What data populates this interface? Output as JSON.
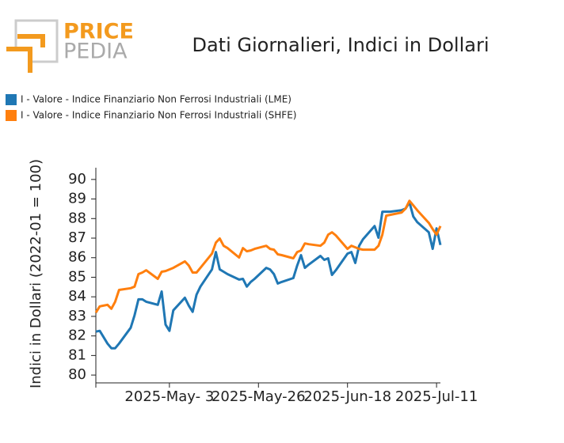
{
  "logo": {
    "line1": "PRICE",
    "line2": "PEDIA"
  },
  "chart_data": {
    "type": "line",
    "title": "Dati Giornalieri, Indici in Dollari",
    "y_label": "Indici in Dollari (2022-01 = 100)",
    "x": [
      "2025-04-14",
      "2025-04-15",
      "2025-04-17",
      "2025-04-18",
      "2025-04-19",
      "2025-04-20",
      "2025-04-23",
      "2025-04-24",
      "2025-04-25",
      "2025-04-26",
      "2025-04-27",
      "2025-04-30",
      "2025-05-01",
      "2025-05-02",
      "2025-05-03",
      "2025-05-04",
      "2025-05-07",
      "2025-05-08",
      "2025-05-09",
      "2025-05-10",
      "2025-05-11",
      "2025-05-14",
      "2025-05-15",
      "2025-05-16",
      "2025-05-17",
      "2025-05-18",
      "2025-05-21",
      "2025-05-22",
      "2025-05-23",
      "2025-05-24",
      "2025-05-25",
      "2025-05-28",
      "2025-05-29",
      "2025-05-30",
      "2025-05-31",
      "2025-06-01",
      "2025-06-04",
      "2025-06-05",
      "2025-06-06",
      "2025-06-07",
      "2025-06-08",
      "2025-06-11",
      "2025-06-12",
      "2025-06-13",
      "2025-06-14",
      "2025-06-15",
      "2025-06-18",
      "2025-06-19",
      "2025-06-20",
      "2025-06-21",
      "2025-06-22",
      "2025-06-25",
      "2025-06-26",
      "2025-06-27",
      "2025-06-28",
      "2025-06-29",
      "2025-07-02",
      "2025-07-03",
      "2025-07-04",
      "2025-07-05",
      "2025-07-06",
      "2025-07-09",
      "2025-07-10",
      "2025-07-11",
      "2025-07-12"
    ],
    "series": [
      {
        "name": "I - Valore - Indice Finanziario Non Ferrosi Industriali (LME)",
        "color": "#1f77b4",
        "values": [
          82.22,
          82.26,
          81.61,
          81.37,
          81.37,
          81.61,
          82.42,
          83.06,
          83.87,
          83.87,
          83.75,
          83.59,
          84.27,
          82.58,
          82.26,
          83.31,
          83.95,
          83.55,
          83.23,
          84.11,
          84.52,
          85.4,
          86.29,
          85.4,
          85.28,
          85.16,
          84.88,
          84.92,
          84.52,
          84.76,
          84.92,
          85.48,
          85.4,
          85.16,
          84.68,
          84.76,
          84.96,
          85.6,
          86.13,
          85.48,
          85.65,
          86.09,
          85.89,
          85.97,
          85.12,
          85.36,
          86.21,
          86.29,
          85.73,
          86.61,
          86.94,
          87.62,
          87.02,
          88.35,
          88.35,
          88.35,
          88.43,
          88.51,
          88.83,
          88.1,
          87.82,
          87.3,
          86.45,
          87.5,
          86.65
        ]
      },
      {
        "name": "I - Valore - Indice Finanziario Non Ferrosi Industriali (SHFE)",
        "color": "#ff7f0e",
        "values": [
          83.19,
          83.51,
          83.59,
          83.39,
          83.75,
          84.35,
          84.44,
          84.52,
          85.16,
          85.24,
          85.36,
          84.92,
          85.28,
          85.32,
          85.4,
          85.48,
          85.81,
          85.6,
          85.24,
          85.24,
          85.48,
          86.21,
          86.77,
          86.98,
          86.61,
          86.49,
          86.01,
          86.49,
          86.33,
          86.37,
          86.45,
          86.61,
          86.45,
          86.41,
          86.17,
          86.13,
          85.97,
          86.29,
          86.37,
          86.73,
          86.69,
          86.61,
          86.77,
          87.18,
          87.3,
          87.14,
          86.45,
          86.61,
          86.53,
          86.45,
          86.41,
          86.41,
          86.61,
          87.18,
          88.15,
          88.19,
          88.31,
          88.51,
          88.91,
          88.67,
          88.43,
          87.78,
          87.46,
          87.18,
          87.62
        ]
      }
    ],
    "xlim": [
      "2025-04-14",
      "2025-07-12"
    ],
    "xticks": [
      {
        "value": "2025-05-03",
        "label": "2025-May- 3"
      },
      {
        "value": "2025-05-26",
        "label": "2025-May-26"
      },
      {
        "value": "2025-06-18",
        "label": "2025-Jun-18"
      },
      {
        "value": "2025-07-11",
        "label": "2025-Jul-11"
      }
    ],
    "ylim": [
      79.6,
      90.6
    ],
    "yticks": [
      80,
      81,
      82,
      83,
      84,
      85,
      86,
      87,
      88,
      89,
      90
    ]
  }
}
